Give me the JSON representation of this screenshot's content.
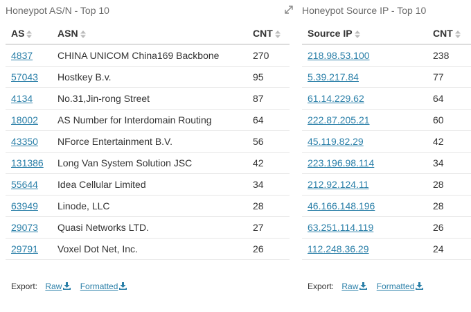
{
  "asn_panel": {
    "title": "Honeypot AS/N - Top 10",
    "headers": [
      "AS",
      "ASN",
      "CNT"
    ],
    "rows": [
      {
        "as": "4837",
        "asn": "CHINA UNICOM China169 Backbone",
        "cnt": "270"
      },
      {
        "as": "57043",
        "asn": "Hostkey B.v.",
        "cnt": "95"
      },
      {
        "as": "4134",
        "asn": "No.31,Jin-rong Street",
        "cnt": "87"
      },
      {
        "as": "18002",
        "asn": "AS Number for Interdomain Routing",
        "cnt": "64"
      },
      {
        "as": "43350",
        "asn": "NForce Entertainment B.V.",
        "cnt": "56"
      },
      {
        "as": "131386",
        "asn": "Long Van System Solution JSC",
        "cnt": "42"
      },
      {
        "as": "55644",
        "asn": "Idea Cellular Limited",
        "cnt": "34"
      },
      {
        "as": "63949",
        "asn": "Linode, LLC",
        "cnt": "28"
      },
      {
        "as": "29073",
        "asn": "Quasi Networks LTD.",
        "cnt": "27"
      },
      {
        "as": "29791",
        "asn": "Voxel Dot Net, Inc.",
        "cnt": "26"
      }
    ],
    "export": {
      "label": "Export:",
      "raw": "Raw",
      "formatted": "Formatted"
    }
  },
  "ip_panel": {
    "title": "Honeypot Source IP - Top 10",
    "headers": [
      "Source IP",
      "CNT"
    ],
    "rows": [
      {
        "ip": "218.98.53.100",
        "cnt": "238"
      },
      {
        "ip": "5.39.217.84",
        "cnt": "77"
      },
      {
        "ip": "61.14.229.62",
        "cnt": "64"
      },
      {
        "ip": "222.87.205.21",
        "cnt": "60"
      },
      {
        "ip": "45.119.82.29",
        "cnt": "42"
      },
      {
        "ip": "223.196.98.114",
        "cnt": "34"
      },
      {
        "ip": "212.92.124.11",
        "cnt": "28"
      },
      {
        "ip": "46.166.148.196",
        "cnt": "28"
      },
      {
        "ip": "63.251.114.119",
        "cnt": "26"
      },
      {
        "ip": "112.248.36.29",
        "cnt": "24"
      }
    ],
    "export": {
      "label": "Export:",
      "raw": "Raw",
      "formatted": "Formatted"
    }
  },
  "icons": {
    "expand": "expand-icon",
    "sort": "sort-icon",
    "download": "download-icon"
  },
  "colors": {
    "link": "#2a7fa8",
    "title": "#6a6a6a",
    "text": "#333333"
  }
}
